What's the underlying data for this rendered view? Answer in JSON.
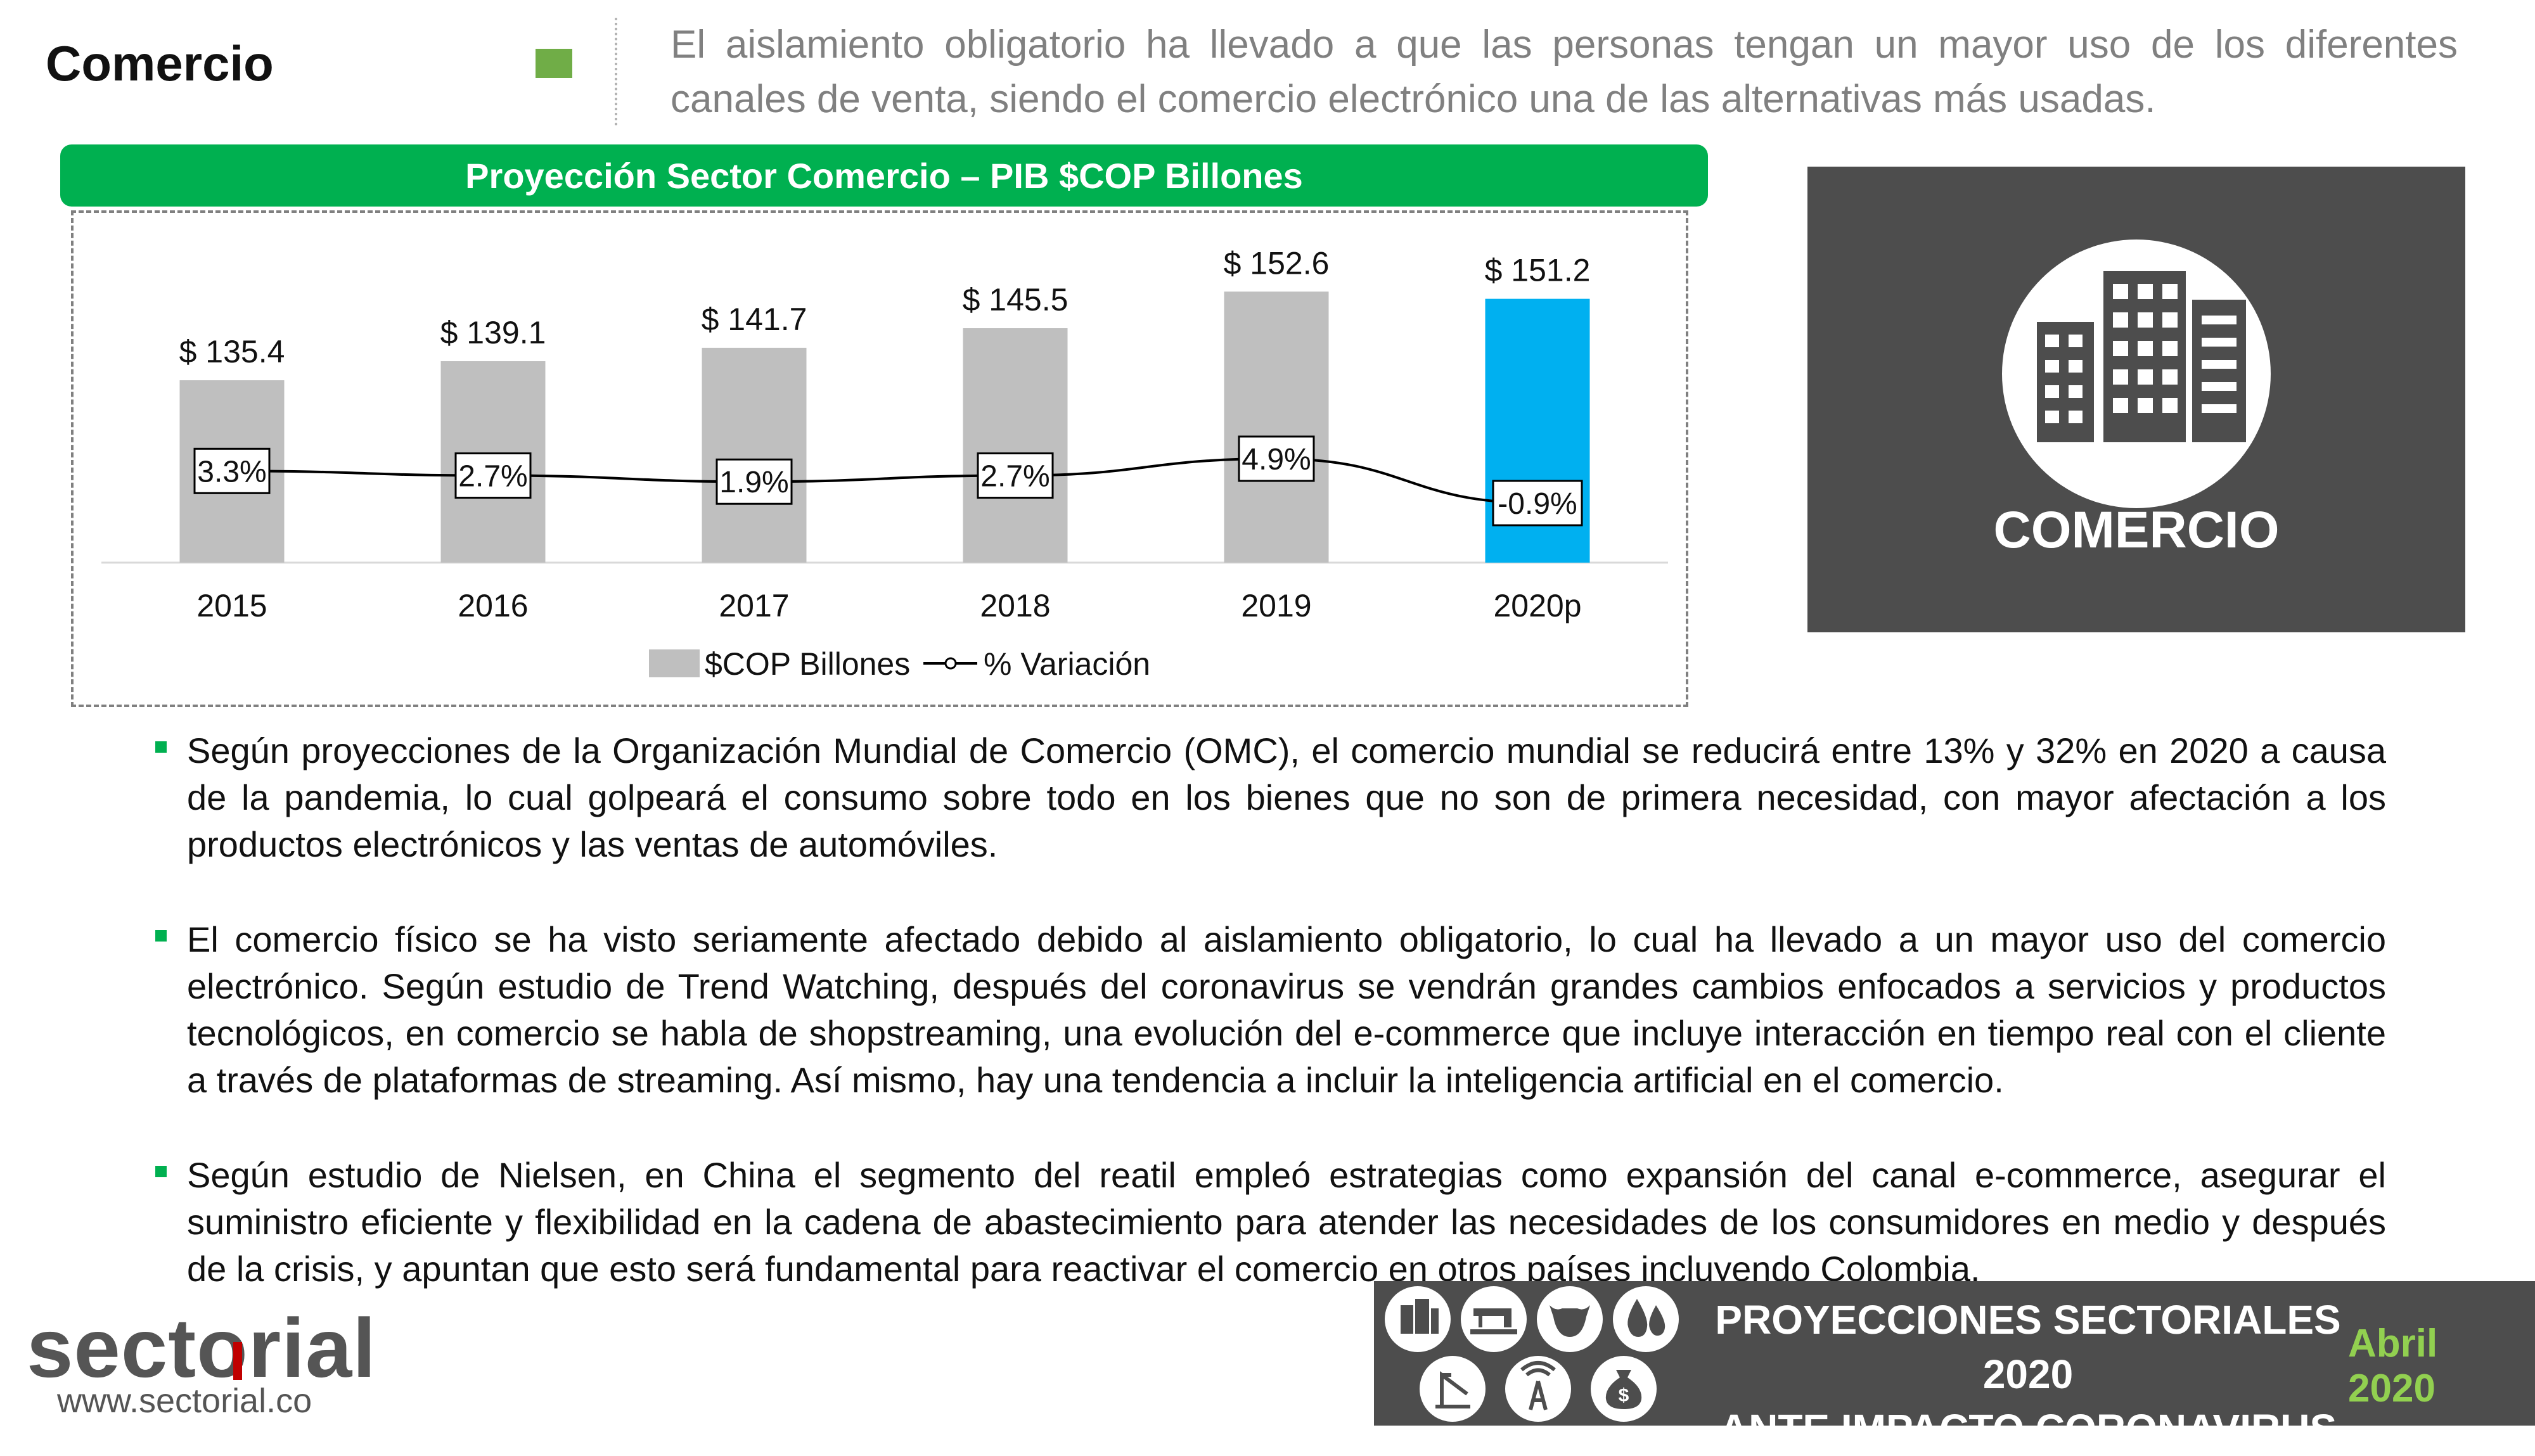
{
  "header": {
    "section_title": "Comercio",
    "intro_text": "El aislamiento obligatorio ha llevado a que las personas tengan un mayor uso de los diferentes canales de venta, siendo el comercio electrónico una de las alternativas más usadas."
  },
  "chart_data": {
    "type": "bar",
    "title": "Proyección Sector Comercio – PIB $COP Billones",
    "categories": [
      "2015",
      "2016",
      "2017",
      "2018",
      "2019",
      "2020p"
    ],
    "series": [
      {
        "name": "$COP Billones",
        "values": [
          135.4,
          139.1,
          141.7,
          145.5,
          152.6,
          151.2
        ],
        "labels": [
          "$ 135.4",
          "$ 139.1",
          "$ 141.7",
          "$ 145.5",
          "$ 152.6",
          "$ 151.2"
        ],
        "color": "#bfbfbf",
        "highlight_color": "#00b0f0",
        "highlight_index": 5
      },
      {
        "name": "% Variación",
        "type": "line",
        "values": [
          3.3,
          2.7,
          1.9,
          2.7,
          4.9,
          -0.9
        ],
        "labels": [
          "3.3%",
          "2.7%",
          "1.9%",
          "2.7%",
          "4.9%",
          "-0.9%"
        ],
        "color": "#000000"
      }
    ],
    "legend_position": "bottom",
    "grid": false
  },
  "tile": {
    "label": "COMERCIO",
    "icon": "office-buildings-icon"
  },
  "bullets": [
    "Según proyecciones de la Organización Mundial de Comercio (OMC), el comercio mundial se reducirá entre 13% y 32% en 2020 a causa de la pandemia, lo cual golpeará el consumo sobre todo en los bienes que no son de primera necesidad, con mayor afectación a los productos electrónicos y las ventas de automóviles.",
    "El comercio físico se ha visto seriamente afectado debido al aislamiento obligatorio, lo cual ha llevado a un mayor uso del comercio electrónico. Según estudio de Trend Watching, después del coronavirus se vendrán grandes cambios enfocados a servicios y productos tecnológicos, en comercio se habla de shopstreaming, una evolución del e-commerce que incluye interacción en tiempo real con el cliente a través de plataformas de streaming. Así mismo, hay una tendencia a incluir la inteligencia artificial en el comercio.",
    "Según estudio de Nielsen, en China el segmento del reatil empleó estrategias como expansión del canal e-commerce, asegurar el suministro eficiente y flexibilidad en la cadena de abastecimiento para atender las necesidades de los consumidores en medio y después de la crisis, y apuntan que esto será fundamental para reactivar el comercio en otros países incluyendo Colombia."
  ],
  "footer": {
    "logo_text": "sectorial",
    "logo_url": "www.sectorial.co",
    "title_line1": "PROYECCIONES SECTORIALES 2020",
    "title_line2": "ANTE IMPACTO CORONAVIRUS",
    "date": "Abril 2020",
    "icons": [
      "buildings-icon",
      "sewing-machine-icon",
      "cow-icon",
      "drops-icon",
      "crane-icon",
      "antenna-icon",
      "money-bag-icon"
    ]
  },
  "colors": {
    "accent_green": "#00b050",
    "light_green": "#92d050",
    "dark_gray": "#4d4d4d",
    "bar_gray": "#bfbfbf",
    "highlight_blue": "#00b0f0"
  }
}
